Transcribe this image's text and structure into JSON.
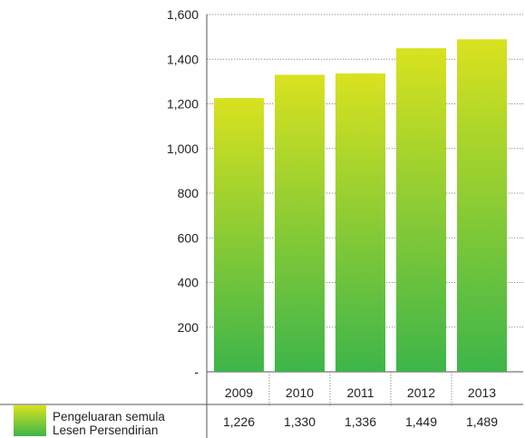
{
  "chart_data": {
    "type": "bar",
    "title": "",
    "xlabel": "",
    "ylabel": "",
    "categories": [
      "2009",
      "2010",
      "2011",
      "2012",
      "2013"
    ],
    "series": [
      {
        "name": "Pengeluaran semula Lesen Persendirian",
        "name_lines": [
          "Pengeluaran semula",
          "Lesen Persendirian"
        ],
        "values": [
          1226,
          1330,
          1336,
          1449,
          1489
        ],
        "value_labels": [
          "1,226",
          "1,330",
          "1,336",
          "1,449",
          "1,489"
        ]
      }
    ],
    "ylim": [
      0,
      1600
    ],
    "yticks": [
      0,
      200,
      400,
      600,
      800,
      1000,
      1200,
      1400,
      1600
    ],
    "ytick_labels": [
      "-",
      "200",
      "400",
      "600",
      "800",
      "1,000",
      "1,200",
      "1,400",
      "1,600"
    ],
    "grid": true,
    "legend": "data table below chart",
    "colors": {
      "bar_top": "#d9e21f",
      "bar_bottom": "#3db54a",
      "grid": "#8a8a8a",
      "axis": "#555555"
    }
  }
}
